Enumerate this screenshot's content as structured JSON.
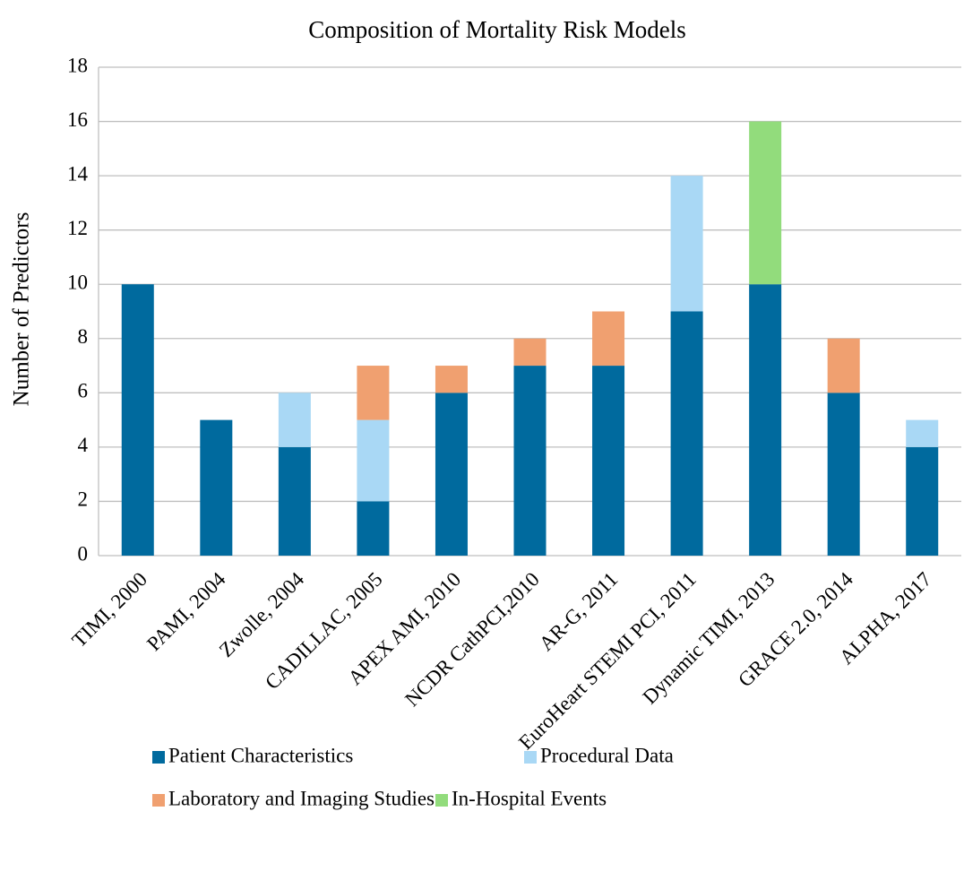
{
  "chart_data": {
    "type": "stacked-bar",
    "title": "Composition of Mortality Risk Models",
    "y_label": "Number of Predictors",
    "categories": [
      "TIMI, 2000",
      "PAMI, 2004",
      "Zwolle, 2004",
      "CADILLAC, 2005",
      "APEX AMI, 2010",
      "NCDR CathPCI,2010",
      "AR-G, 2011",
      "EuroHeart STEMI PCI, 2011",
      "Dynamic TIMI, 2013",
      "GRACE 2.0, 2014",
      "ALPHA, 2017"
    ],
    "series": [
      {
        "name": "Patient Characteristics",
        "color": "#006a9e",
        "values": [
          10,
          5,
          4,
          2,
          6,
          7,
          7,
          9,
          10,
          6,
          4
        ]
      },
      {
        "name": "Procedural Data",
        "color": "#a9d8f5",
        "values": [
          0,
          0,
          2,
          3,
          0,
          0,
          0,
          5,
          0,
          0,
          1
        ]
      },
      {
        "name": "Laboratory and Imaging Studies",
        "color": "#f0a070",
        "values": [
          0,
          0,
          0,
          2,
          1,
          1,
          2,
          0,
          0,
          2,
          0
        ]
      },
      {
        "name": "In-Hospital Events",
        "color": "#92dc7c",
        "values": [
          0,
          0,
          0,
          0,
          0,
          0,
          0,
          0,
          6,
          0,
          0
        ]
      }
    ],
    "ylim": [
      0,
      18
    ],
    "yticks": [
      0,
      2,
      4,
      6,
      8,
      10,
      12,
      14,
      16,
      18
    ],
    "grid": true
  }
}
